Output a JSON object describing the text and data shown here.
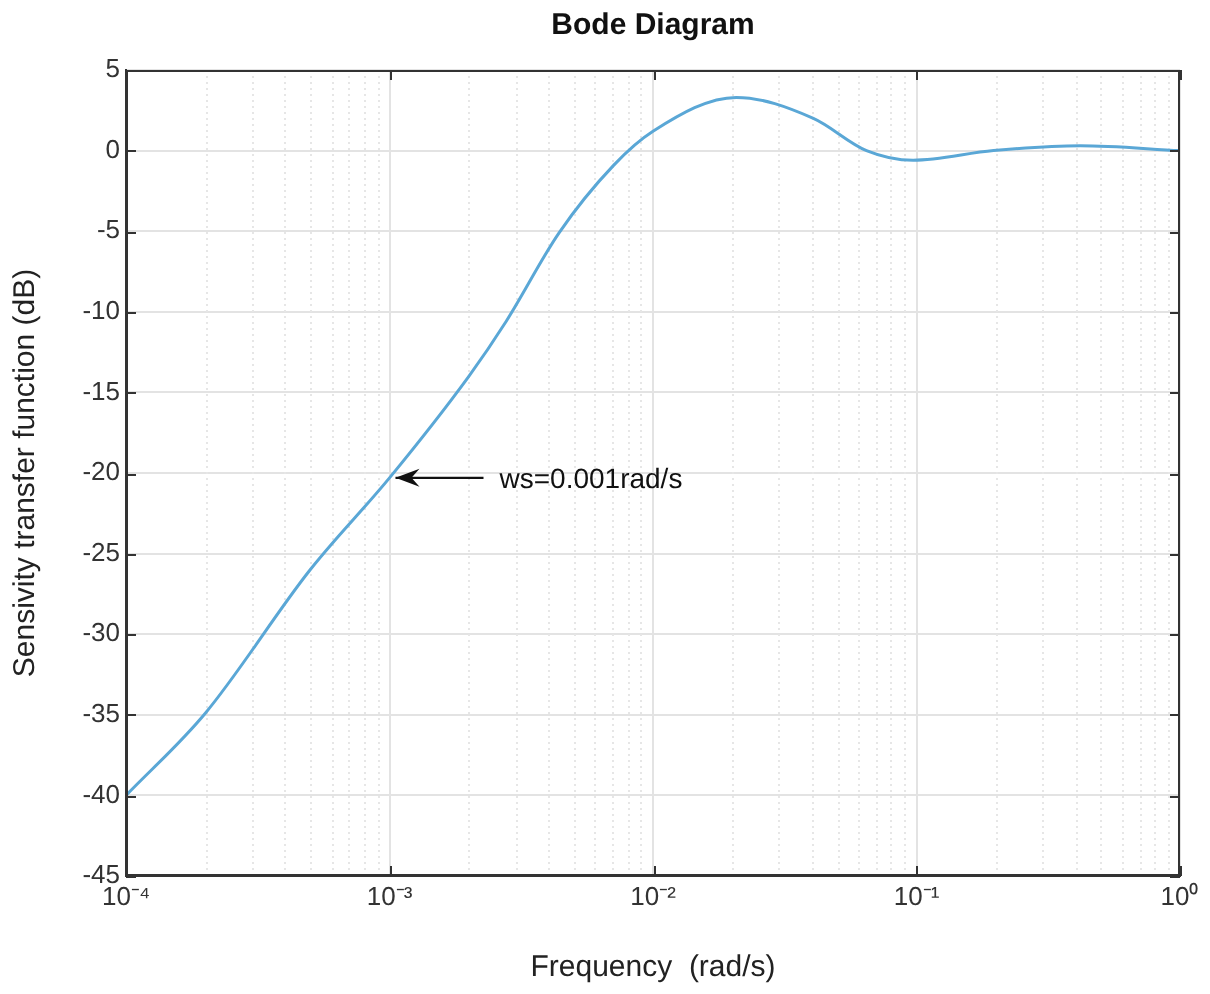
{
  "chart_data": {
    "type": "line",
    "title": "Bode Diagram",
    "xlabel": "Frequency  (rad/s)",
    "ylabel": "Sensivity transfer function (dB)",
    "log": "x",
    "grid": true,
    "legend": false,
    "marker": "none",
    "line_style": "solid",
    "xlim": [
      0.0001,
      1
    ],
    "xticks": [
      {
        "value": 0.0001,
        "label": "10⁻⁴"
      },
      {
        "value": 0.001,
        "label": "10⁻³"
      },
      {
        "value": 0.01,
        "label": "10⁻²"
      },
      {
        "value": 0.1,
        "label": "10⁻¹"
      },
      {
        "value": 1,
        "label": "10⁰"
      }
    ],
    "ylim": [
      -45,
      5
    ],
    "yticks": [
      -45,
      -40,
      -35,
      -30,
      -25,
      -20,
      -15,
      -10,
      -5,
      0,
      5
    ],
    "x": [
      0.0001,
      0.0002,
      0.0005,
      0.001,
      0.002,
      0.00277,
      0.0044,
      0.0071,
      0.01,
      0.0207,
      0.0406,
      0.0646,
      0.097,
      0.196,
      0.418,
      1
    ],
    "series": [
      {
        "color": "#5aa7d6",
        "values": [
          -40,
          -34.9,
          -26,
          -20.3,
          -14,
          -10.6,
          -5.1,
          -0.9,
          1.2,
          3.3,
          2.0,
          0.0,
          -0.6,
          0.0,
          0.3,
          0.0
        ]
      }
    ],
    "annotations": [
      {
        "text": "ws=0.001rad/s",
        "x": 0.001,
        "y": -20.3
      }
    ]
  }
}
